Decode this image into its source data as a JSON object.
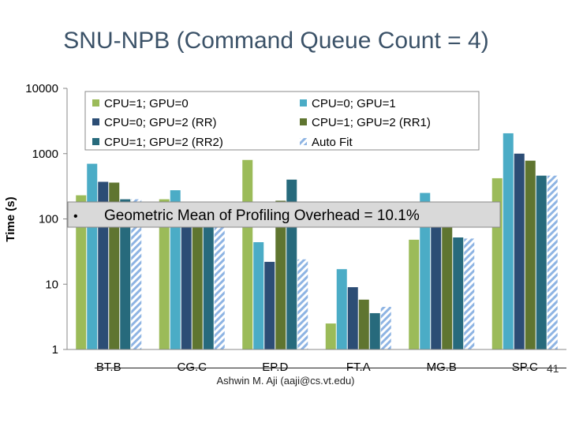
{
  "slide": {
    "title": "SNU-NPB (Command Queue Count = 4)",
    "slide_number": "41",
    "footer": "Ashwin M. Aji (aaji@cs.vt.edu)"
  },
  "chart_data": {
    "type": "bar",
    "ylabel": "Time (s)",
    "yscale": "log",
    "ylim": [
      1,
      10000
    ],
    "y_ticks": [
      1,
      10,
      100,
      1000,
      10000
    ],
    "y_tick_labels": [
      "1",
      "10",
      "100",
      "1000",
      "10000"
    ],
    "categories": [
      "BT.B",
      "CG.C",
      "EP.D",
      "FT.A",
      "MG.B",
      "SP.C"
    ],
    "grid": false,
    "legend_position": "top",
    "series": [
      {
        "name": "CPU=1; GPU=0",
        "color": "#9bbb59",
        "pattern": "solid",
        "values": [
          230,
          200,
          800,
          2.5,
          48,
          420
        ]
      },
      {
        "name": "CPU=0; GPU=1",
        "color": "#4bacc6",
        "pattern": "solid",
        "values": [
          700,
          275,
          44,
          17,
          250,
          2050
        ]
      },
      {
        "name": "CPU=0; GPU=2 (RR)",
        "color": "#2c4d75",
        "pattern": "solid",
        "values": [
          370,
          150,
          22,
          9,
          150,
          1000
        ]
      },
      {
        "name": "CPU=1; GPU=2 (RR1)",
        "color": "#5f7530",
        "pattern": "solid",
        "values": [
          360,
          150,
          190,
          5.8,
          150,
          780
        ]
      },
      {
        "name": "CPU=1; GPU=2 (RR2)",
        "color": "#276a7c",
        "pattern": "solid",
        "values": [
          200,
          150,
          400,
          3.6,
          52,
          460
        ]
      },
      {
        "name": "Auto Fit",
        "color": "#8eb4e3",
        "pattern": "hatched",
        "values": [
          200,
          150,
          24,
          4.5,
          50,
          460
        ]
      }
    ],
    "annotation": {
      "bullet": "•",
      "text": "Geometric Mean of Profiling Overhead = 10.1%"
    }
  }
}
